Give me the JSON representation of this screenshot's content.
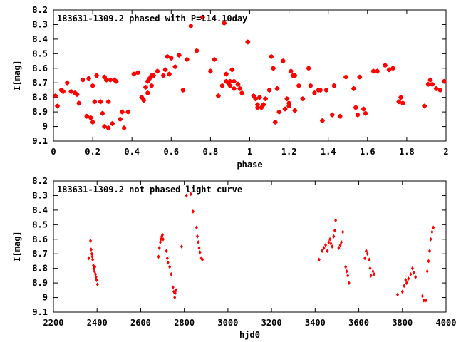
{
  "colors": {
    "points": "#ff0000",
    "axes": "#000000"
  },
  "chart_data": [
    {
      "type": "scatter",
      "title": "183631-1309.2 phased with P=114.10day",
      "xlabel": "phase",
      "ylabel": "I[mag]",
      "xlim": [
        0,
        2
      ],
      "ylim": [
        8.2,
        9.1
      ],
      "y_inverted": true,
      "grid": false,
      "xticks": [
        "0",
        "0.2",
        "0.4",
        "0.6",
        "0.8",
        "1",
        "1.2",
        "1.4",
        "1.6",
        "1.8",
        "2"
      ],
      "yticks": [
        "8.2",
        "8.3",
        "8.4",
        "8.5",
        "8.6",
        "8.7",
        "8.8",
        "8.9",
        "9",
        "9.1"
      ],
      "marker": "star",
      "points": [
        [
          0.01,
          8.79
        ],
        [
          0.02,
          8.86
        ],
        [
          0.04,
          8.75
        ],
        [
          0.05,
          8.76
        ],
        [
          0.07,
          8.7
        ],
        [
          0.09,
          8.76
        ],
        [
          0.11,
          8.77
        ],
        [
          0.12,
          8.78
        ],
        [
          0.13,
          8.84
        ],
        [
          0.15,
          8.68
        ],
        [
          0.17,
          8.93
        ],
        [
          0.18,
          8.67
        ],
        [
          0.19,
          8.94
        ],
        [
          0.2,
          8.72
        ],
        [
          0.2,
          8.97
        ],
        [
          0.21,
          8.83
        ],
        [
          0.22,
          8.65
        ],
        [
          0.24,
          8.83
        ],
        [
          0.25,
          8.91
        ],
        [
          0.26,
          9.0
        ],
        [
          0.26,
          8.66
        ],
        [
          0.27,
          8.68
        ],
        [
          0.28,
          9.01
        ],
        [
          0.28,
          8.83
        ],
        [
          0.29,
          8.68
        ],
        [
          0.3,
          8.98
        ],
        [
          0.31,
          8.68
        ],
        [
          0.32,
          8.69
        ],
        [
          0.34,
          8.95
        ],
        [
          0.35,
          8.9
        ],
        [
          0.36,
          9.01
        ],
        [
          0.38,
          8.9
        ],
        [
          0.41,
          8.64
        ],
        [
          0.43,
          8.63
        ],
        [
          0.45,
          8.8
        ],
        [
          0.46,
          8.82
        ],
        [
          0.47,
          8.73
        ],
        [
          0.48,
          8.77
        ],
        [
          0.48,
          8.69
        ],
        [
          0.49,
          8.67
        ],
        [
          0.5,
          8.72
        ],
        [
          0.5,
          8.65
        ],
        [
          0.51,
          8.65
        ],
        [
          0.53,
          8.62
        ],
        [
          0.56,
          8.65
        ],
        [
          0.57,
          8.61
        ],
        [
          0.58,
          8.52
        ],
        [
          0.59,
          8.64
        ],
        [
          0.6,
          8.53
        ],
        [
          0.62,
          8.59
        ],
        [
          0.64,
          8.51
        ],
        [
          0.66,
          8.75
        ],
        [
          0.68,
          8.54
        ],
        [
          0.7,
          8.31
        ],
        [
          0.73,
          8.48
        ],
        [
          0.76,
          8.25
        ],
        [
          0.8,
          8.62
        ],
        [
          0.82,
          8.54
        ],
        [
          0.84,
          8.79
        ],
        [
          0.86,
          8.72
        ],
        [
          0.87,
          8.29
        ],
        [
          0.88,
          8.64
        ],
        [
          0.88,
          8.69
        ],
        [
          0.89,
          8.7
        ],
        [
          0.9,
          8.69
        ],
        [
          0.9,
          8.72
        ],
        [
          0.91,
          8.61
        ],
        [
          0.92,
          8.69
        ],
        [
          0.92,
          8.74
        ],
        [
          0.94,
          8.71
        ],
        [
          0.95,
          8.74
        ],
        [
          0.96,
          8.77
        ],
        [
          0.99,
          8.42
        ],
        [
          1.02,
          8.79
        ],
        [
          1.03,
          8.81
        ],
        [
          1.04,
          8.85
        ],
        [
          1.04,
          8.87
        ],
        [
          1.05,
          8.8
        ],
        [
          1.06,
          8.87
        ],
        [
          1.07,
          8.85
        ],
        [
          1.08,
          8.81
        ],
        [
          1.1,
          8.75
        ],
        [
          1.11,
          8.52
        ],
        [
          1.12,
          8.6
        ],
        [
          1.13,
          8.97
        ],
        [
          1.14,
          8.74
        ],
        [
          1.15,
          8.9
        ],
        [
          1.17,
          8.55
        ],
        [
          1.18,
          8.88
        ],
        [
          1.19,
          8.81
        ],
        [
          1.2,
          8.84
        ],
        [
          1.2,
          8.86
        ],
        [
          1.21,
          8.62
        ],
        [
          1.22,
          8.65
        ],
        [
          1.23,
          8.65
        ],
        [
          1.23,
          8.89
        ],
        [
          1.25,
          8.72
        ],
        [
          1.27,
          8.81
        ],
        [
          1.3,
          8.6
        ],
        [
          1.31,
          8.72
        ],
        [
          1.33,
          8.77
        ],
        [
          1.35,
          8.75
        ],
        [
          1.36,
          8.75
        ],
        [
          1.37,
          8.96
        ],
        [
          1.39,
          8.75
        ],
        [
          1.42,
          8.92
        ],
        [
          1.43,
          8.72
        ],
        [
          1.46,
          8.93
        ],
        [
          1.49,
          8.66
        ],
        [
          1.53,
          8.74
        ],
        [
          1.54,
          8.87
        ],
        [
          1.55,
          8.92
        ],
        [
          1.56,
          8.66
        ],
        [
          1.58,
          8.88
        ],
        [
          1.59,
          8.91
        ],
        [
          1.63,
          8.62
        ],
        [
          1.65,
          8.62
        ],
        [
          1.69,
          8.58
        ],
        [
          1.71,
          8.61
        ],
        [
          1.73,
          8.6
        ],
        [
          1.76,
          8.83
        ],
        [
          1.77,
          8.8
        ],
        [
          1.78,
          8.84
        ],
        [
          1.89,
          8.86
        ],
        [
          1.91,
          8.71
        ],
        [
          1.92,
          8.68
        ],
        [
          1.93,
          8.71
        ],
        [
          1.95,
          8.74
        ],
        [
          1.97,
          8.75
        ],
        [
          1.99,
          8.69
        ]
      ]
    },
    {
      "type": "scatter",
      "title": "183631-1309.2 not phased light curve",
      "xlabel": "hjd0",
      "ylabel": "I[mag]",
      "xlim": [
        2200,
        4000
      ],
      "ylim": [
        8.2,
        9.1
      ],
      "y_inverted": true,
      "grid": false,
      "xticks": [
        "2200",
        "2400",
        "2600",
        "2800",
        "3000",
        "3200",
        "3400",
        "3600",
        "3800",
        "4000"
      ],
      "yticks": [
        "8.2",
        "8.3",
        "8.4",
        "8.5",
        "8.6",
        "8.7",
        "8.8",
        "8.9",
        "9",
        "9.1"
      ],
      "marker": "diamond",
      "points": [
        [
          2362,
          8.73
        ],
        [
          2370,
          8.61
        ],
        [
          2373,
          8.67
        ],
        [
          2376,
          8.7
        ],
        [
          2378,
          8.72
        ],
        [
          2380,
          8.74
        ],
        [
          2383,
          8.78
        ],
        [
          2385,
          8.8
        ],
        [
          2388,
          8.82
        ],
        [
          2390,
          8.79
        ],
        [
          2393,
          8.84
        ],
        [
          2395,
          8.86
        ],
        [
          2398,
          8.88
        ],
        [
          2402,
          8.91
        ],
        [
          2682,
          8.72
        ],
        [
          2686,
          8.66
        ],
        [
          2690,
          8.62
        ],
        [
          2693,
          8.6
        ],
        [
          2697,
          8.58
        ],
        [
          2700,
          8.57
        ],
        [
          2703,
          8.6
        ],
        [
          2718,
          8.68
        ],
        [
          2722,
          8.73
        ],
        [
          2725,
          8.76
        ],
        [
          2733,
          8.79
        ],
        [
          2740,
          8.84
        ],
        [
          2748,
          8.93
        ],
        [
          2752,
          8.96
        ],
        [
          2756,
          9.0
        ],
        [
          2758,
          8.97
        ],
        [
          2762,
          8.95
        ],
        [
          2788,
          8.65
        ],
        [
          2810,
          8.3
        ],
        [
          2830,
          8.29
        ],
        [
          2840,
          8.41
        ],
        [
          2856,
          8.52
        ],
        [
          2860,
          8.58
        ],
        [
          2864,
          8.62
        ],
        [
          2868,
          8.66
        ],
        [
          2872,
          8.69
        ],
        [
          2878,
          8.73
        ],
        [
          2883,
          8.74
        ],
        [
          3418,
          8.74
        ],
        [
          3432,
          8.68
        ],
        [
          3440,
          8.66
        ],
        [
          3448,
          8.64
        ],
        [
          3456,
          8.68
        ],
        [
          3462,
          8.62
        ],
        [
          3468,
          8.6
        ],
        [
          3472,
          8.63
        ],
        [
          3478,
          8.65
        ],
        [
          3485,
          8.58
        ],
        [
          3490,
          8.54
        ],
        [
          3494,
          8.47
        ],
        [
          3508,
          8.66
        ],
        [
          3515,
          8.64
        ],
        [
          3520,
          8.62
        ],
        [
          3527,
          8.55
        ],
        [
          3540,
          8.79
        ],
        [
          3545,
          8.82
        ],
        [
          3550,
          8.85
        ],
        [
          3555,
          8.9
        ],
        [
          3628,
          8.73
        ],
        [
          3634,
          8.68
        ],
        [
          3640,
          8.7
        ],
        [
          3648,
          8.74
        ],
        [
          3652,
          8.8
        ],
        [
          3656,
          8.85
        ],
        [
          3665,
          8.82
        ],
        [
          3670,
          8.84
        ],
        [
          3778,
          8.98
        ],
        [
          3800,
          8.96
        ],
        [
          3808,
          8.92
        ],
        [
          3815,
          8.88
        ],
        [
          3820,
          8.9
        ],
        [
          3828,
          8.87
        ],
        [
          3838,
          8.84
        ],
        [
          3846,
          8.8
        ],
        [
          3852,
          8.83
        ],
        [
          3860,
          8.86
        ],
        [
          3892,
          8.99
        ],
        [
          3898,
          9.02
        ],
        [
          3908,
          9.02
        ],
        [
          3914,
          8.82
        ],
        [
          3920,
          8.75
        ],
        [
          3925,
          8.68
        ],
        [
          3930,
          8.6
        ],
        [
          3936,
          8.55
        ],
        [
          3942,
          8.52
        ]
      ]
    }
  ]
}
